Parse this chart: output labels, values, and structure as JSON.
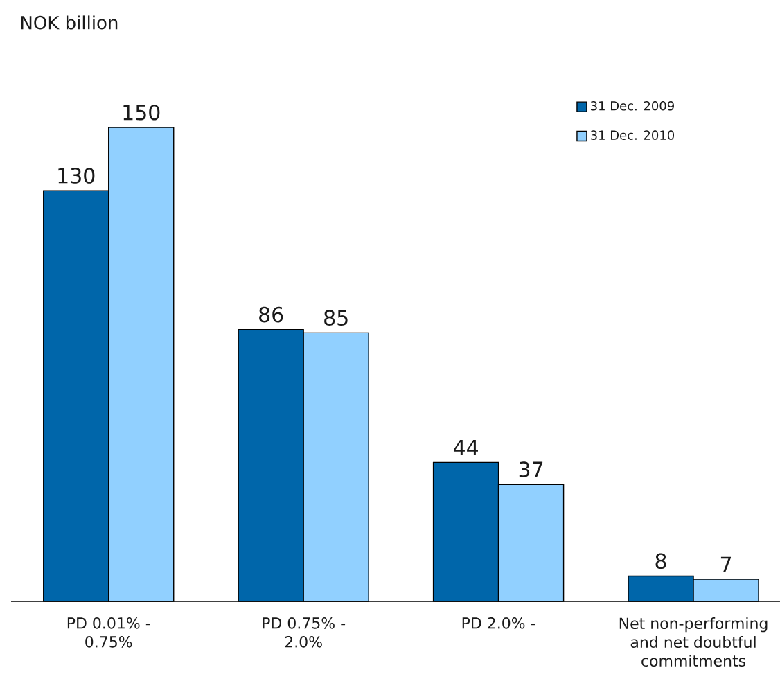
{
  "chart_data": {
    "type": "bar",
    "title": "NOK billion",
    "categories": [
      "PD  0.01% - 0.75%",
      "PD  0.75% - 2.0%",
      "PD  2.0% -",
      "Net non-performing and net doubtful commitments"
    ],
    "series": [
      {
        "name": "31 Dec. 2009",
        "color": "#0066aa",
        "values": [
          130,
          86,
          44,
          8
        ]
      },
      {
        "name": "31 Dec. 2010",
        "color": "#91d0ff",
        "values": [
          150,
          85,
          37,
          7
        ]
      }
    ],
    "ylim": [
      0,
      150
    ],
    "tick_labels": "x",
    "data_labels": true,
    "legend": "top right"
  }
}
